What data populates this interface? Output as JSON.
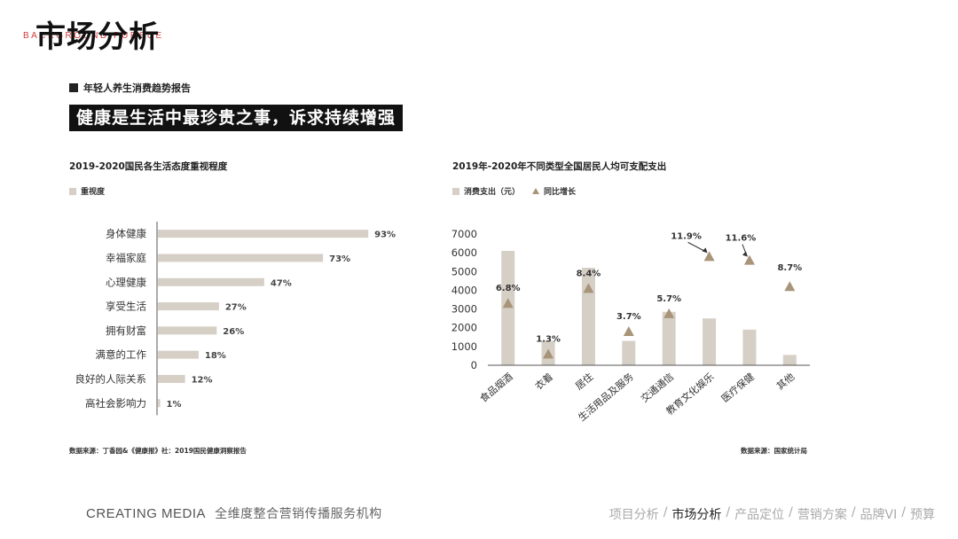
{
  "header": {
    "title": "市场分析",
    "subtitle": "BACKGROUND PURSUE"
  },
  "report_tag": "年轻人养生消费趋势报告",
  "headline": "健康是生活中最珍贵之事，诉求持续增强",
  "left": {
    "title": "2019-2020国民各生活态度重视程度",
    "legend": "重视度",
    "source": "数据来源：丁香园&《健康报》社：2019国民健康洞察报告"
  },
  "right": {
    "title": "2019年-2020年不同类型全国居民人均可支配支出",
    "legend_bar": "消费支出（元）",
    "legend_marker": "同比增长",
    "source": "数据来源：国家统计局"
  },
  "chart_data": [
    {
      "type": "bar",
      "orientation": "horizontal",
      "categories": [
        "身体健康",
        "幸福家庭",
        "心理健康",
        "享受生活",
        "拥有财富",
        "满意的工作",
        "良好的人际关系",
        "高社会影响力"
      ],
      "values": [
        93,
        73,
        47,
        27,
        26,
        18,
        12,
        1
      ],
      "value_labels": [
        "93%",
        "73%",
        "47%",
        "27%",
        "26%",
        "18%",
        "12%",
        "1%"
      ],
      "xlim": [
        0,
        100
      ],
      "legend_position": "top-left",
      "color": "#d6cfc6"
    },
    {
      "type": "bar",
      "categories": [
        "食品烟酒",
        "衣着",
        "居住",
        "生活用品及服务",
        "交通通信",
        "教育文化娱乐",
        "医疗保健",
        "其他"
      ],
      "series": [
        {
          "name": "消费支出（元）",
          "type": "bar",
          "values": [
            6100,
            1300,
            5200,
            1300,
            2850,
            2500,
            1900,
            550
          ]
        },
        {
          "name": "同比增长",
          "type": "scatter",
          "marker": "triangle",
          "values": [
            3300,
            600,
            4100,
            1800,
            2750,
            5800,
            5600,
            4200
          ],
          "labels": [
            "6.8%",
            "1.3%",
            "8.4%",
            "3.7%",
            "5.7%",
            "11.9%",
            "11.6%",
            "8.7%"
          ]
        }
      ],
      "ylim": [
        0,
        7000
      ],
      "yticks": [
        0,
        1000,
        2000,
        3000,
        4000,
        5000,
        6000,
        7000
      ],
      "legend_position": "top-left",
      "bar_color": "#d6cfc6",
      "marker_color": "#a89478"
    }
  ],
  "footer": {
    "brand": "CREATING MEDIA",
    "slogan": "全维度整合营销传播服务机构",
    "nav": [
      {
        "label": "项目分析",
        "active": false
      },
      {
        "label": "市场分析",
        "active": true
      },
      {
        "label": "产品定位",
        "active": false
      },
      {
        "label": "营销方案",
        "active": false
      },
      {
        "label": "品牌VI",
        "active": false
      },
      {
        "label": "预算",
        "active": false
      }
    ]
  }
}
